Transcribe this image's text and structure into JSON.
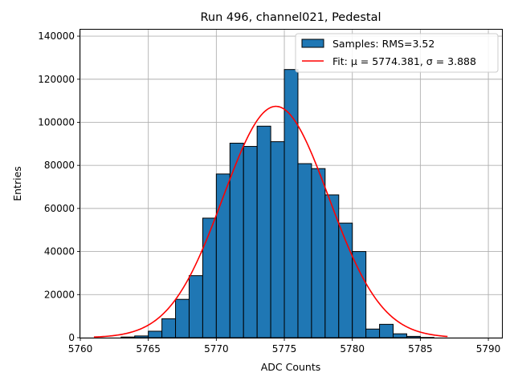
{
  "chart_data": {
    "type": "bar",
    "title": "Run 496, channel021, Pedestal",
    "xlabel": "ADC Counts",
    "ylabel": "Entries",
    "xlim": [
      5760,
      5791
    ],
    "ylim": [
      0,
      143000
    ],
    "x_ticks": [
      {
        "value": 5760,
        "label": "5760"
      },
      {
        "value": 5765,
        "label": "5765"
      },
      {
        "value": 5770,
        "label": "5770"
      },
      {
        "value": 5775,
        "label": "5775"
      },
      {
        "value": 5780,
        "label": "5780"
      },
      {
        "value": 5785,
        "label": "5785"
      },
      {
        "value": 5790,
        "label": "5790"
      }
    ],
    "y_ticks": [
      {
        "value": 0,
        "label": "0"
      },
      {
        "value": 20000,
        "label": "20000"
      },
      {
        "value": 40000,
        "label": "40000"
      },
      {
        "value": 60000,
        "label": "60000"
      },
      {
        "value": 80000,
        "label": "80000"
      },
      {
        "value": 100000,
        "label": "100000"
      },
      {
        "value": 120000,
        "label": "120000"
      },
      {
        "value": 140000,
        "label": "140000"
      }
    ],
    "grid": true,
    "legend_position": "top-right",
    "histogram": {
      "name": "Samples: RMS=3.52",
      "color": "#1f77b4",
      "bin_edges": [
        5763,
        5764,
        5765,
        5766,
        5767,
        5768,
        5769,
        5770,
        5771,
        5772,
        5773,
        5774,
        5775,
        5776,
        5777,
        5778,
        5779,
        5780,
        5781,
        5782,
        5783,
        5784,
        5785,
        5786
      ],
      "counts": [
        300,
        800,
        3000,
        8800,
        17800,
        28800,
        55500,
        76000,
        90300,
        88800,
        98200,
        91000,
        124500,
        80800,
        78500,
        66300,
        53200,
        40000,
        4000,
        6200,
        1800,
        600,
        100
      ]
    },
    "fit": {
      "name": "Fit: μ = 5774.381, σ = 3.888",
      "color": "#ff0000",
      "mu": 5774.381,
      "sigma": 3.888,
      "amplitude": 107400,
      "x_range": [
        5761,
        5787
      ]
    }
  }
}
